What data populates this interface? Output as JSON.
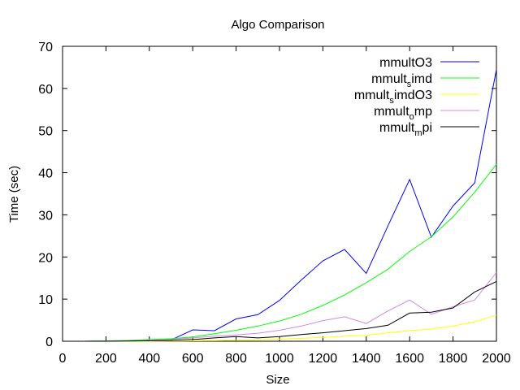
{
  "chart_data": {
    "type": "line",
    "title": "Algo Comparison",
    "xlabel": "Size",
    "ylabel": "Time (sec)",
    "xlim": [
      0,
      2000
    ],
    "ylim": [
      0,
      70
    ],
    "xticks": [
      0,
      200,
      400,
      600,
      800,
      1000,
      1200,
      1400,
      1600,
      1800,
      2000
    ],
    "yticks": [
      0,
      10,
      20,
      30,
      40,
      50,
      60,
      70
    ],
    "grid": false,
    "legend_position": "top-right",
    "x": [
      100,
      200,
      300,
      400,
      500,
      600,
      700,
      800,
      900,
      1000,
      1100,
      1200,
      1300,
      1400,
      1500,
      1600,
      1700,
      1800,
      1900,
      2000
    ],
    "series": [
      {
        "name": "mmultO3",
        "legend_main": "mmultO3",
        "legend_sub": "",
        "legend_tail": "",
        "color": "#0000ff",
        "values": [
          0.0,
          0.05,
          0.1,
          0.2,
          0.3,
          2.7,
          2.5,
          5.3,
          6.3,
          9.7,
          14.5,
          19.1,
          21.8,
          16.1,
          27.4,
          38.4,
          24.7,
          32.1,
          37.6,
          64.5
        ]
      },
      {
        "name": "mmult_simd",
        "legend_main": "mmult",
        "legend_sub": "s",
        "legend_tail": "imd",
        "color": "#00ff00",
        "values": [
          0.0,
          0.1,
          0.2,
          0.4,
          0.6,
          1.0,
          1.8,
          2.6,
          3.6,
          4.8,
          6.4,
          8.5,
          11.0,
          13.9,
          17.1,
          21.3,
          24.8,
          29.5,
          35.4,
          42.0
        ]
      },
      {
        "name": "mmult_simdO3",
        "legend_main": "mmult",
        "legend_sub": "s",
        "legend_tail": "imdO3",
        "color": "#ffff00",
        "values": [
          0.0,
          0.0,
          0.0,
          0.0,
          0.05,
          0.1,
          0.15,
          0.25,
          0.35,
          0.5,
          0.7,
          0.9,
          1.2,
          1.4,
          2.0,
          2.5,
          2.9,
          3.6,
          4.6,
          6.2
        ]
      },
      {
        "name": "mmult_omp",
        "legend_main": "mmult",
        "legend_sub": "o",
        "legend_tail": "mp",
        "color": "#cc88ee",
        "values": [
          0.0,
          0.05,
          0.1,
          0.2,
          0.4,
          0.8,
          1.2,
          1.5,
          1.9,
          2.6,
          3.6,
          4.9,
          5.8,
          4.2,
          7.2,
          9.8,
          6.4,
          8.2,
          9.8,
          16.3
        ]
      },
      {
        "name": "mmult_mpi",
        "legend_main": "mmult",
        "legend_sub": "m",
        "legend_tail": "pi",
        "color": "#000000",
        "values": [
          0.0,
          0.0,
          0.05,
          0.1,
          0.2,
          0.4,
          0.8,
          1.1,
          0.8,
          1.1,
          1.6,
          2.0,
          2.5,
          3.0,
          3.8,
          6.7,
          6.9,
          7.9,
          11.7,
          14.2
        ]
      }
    ]
  }
}
